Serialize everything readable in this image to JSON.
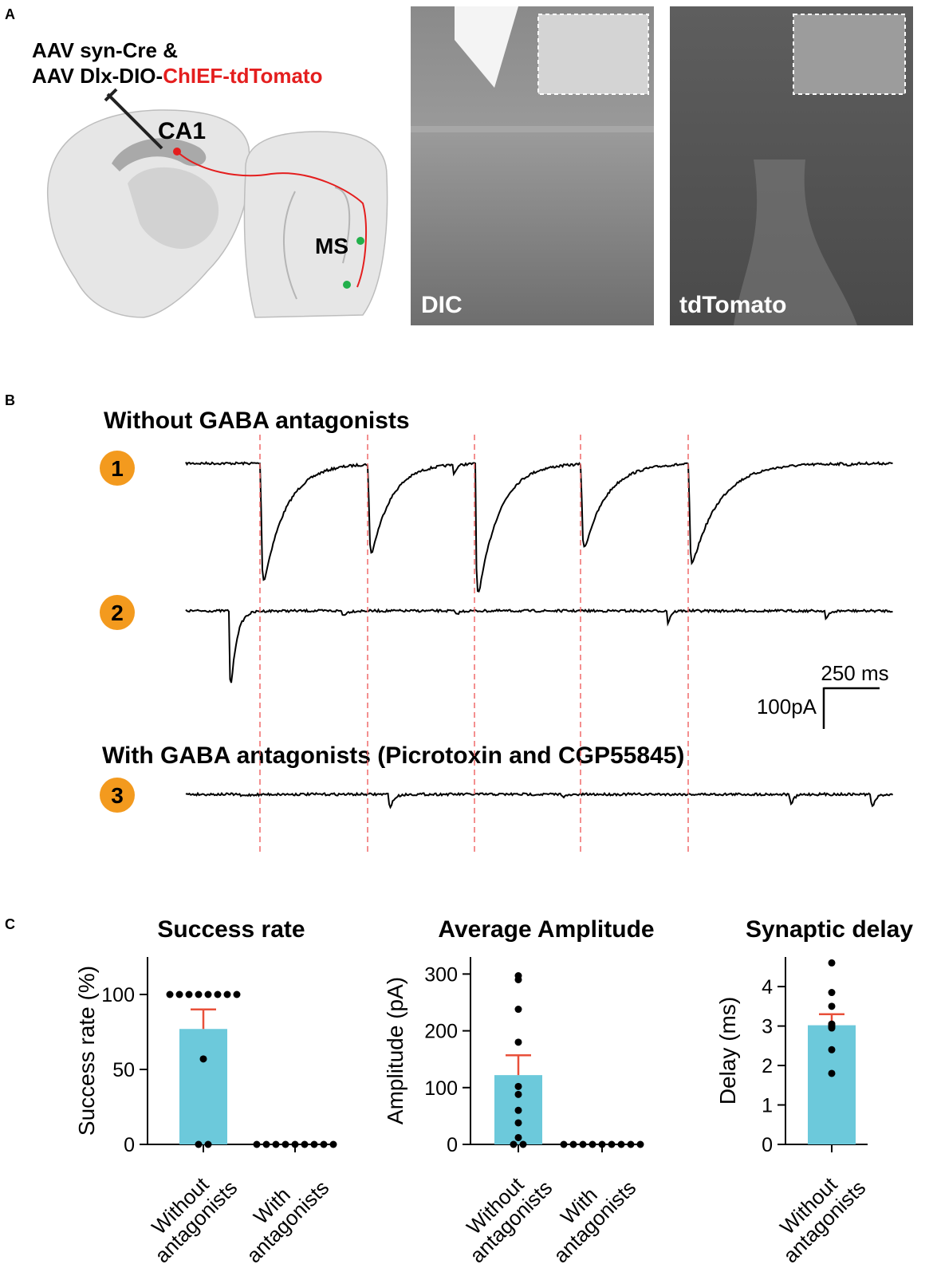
{
  "panel_a": {
    "label": "A",
    "injection_line1": "AAV syn-Cre &",
    "injection_line2_prefix": "AAV Dlx-DIO-",
    "injection_line2_highlight": "ChIEF-tdTomato",
    "region_ca1": "CA1",
    "region_ms": "MS",
    "image_dic": "DIC",
    "image_tdtomato": "tdTomato"
  },
  "panel_b": {
    "label": "B",
    "condition_1": "Without GABA antagonists",
    "trace_labels": [
      "1",
      "2",
      "3"
    ],
    "condition_2": "With GABA antagonists (Picrotoxin and CGP55845)",
    "scale_time": "250 ms",
    "scale_current": "100pA"
  },
  "panel_c_label": "C",
  "chart_data": [
    {
      "type": "bar",
      "title": "Success rate",
      "y_label": "Success rate (%)",
      "categories": [
        "Without antagonists",
        "With antagonists"
      ],
      "values": [
        77,
        0
      ],
      "errors": [
        13,
        0
      ],
      "points": [
        [
          100,
          100,
          100,
          100,
          100,
          100,
          100,
          100,
          57,
          0,
          0
        ],
        [
          0,
          0,
          0,
          0,
          0,
          0,
          0,
          0,
          0
        ]
      ],
      "ylim": [
        0,
        125
      ],
      "yticks": [
        0,
        50,
        100
      ],
      "color": "#6cc9db",
      "error_color": "#e8503a"
    },
    {
      "type": "bar",
      "title": "Average Amplitude",
      "y_label": "Amplitude (pA)",
      "categories": [
        "Without antagonists",
        "With antagonists"
      ],
      "values": [
        122,
        0
      ],
      "errors": [
        35,
        0
      ],
      "points": [
        [
          297,
          290,
          238,
          180,
          102,
          88,
          60,
          38,
          12,
          0,
          0
        ],
        [
          0,
          0,
          0,
          0,
          0,
          0,
          0,
          0,
          0
        ]
      ],
      "ylim": [
        0,
        330
      ],
      "yticks": [
        0,
        100,
        200,
        300
      ],
      "color": "#6cc9db",
      "error_color": "#e8503a"
    },
    {
      "type": "bar",
      "title": "Synaptic delay",
      "y_label": "Delay (ms)",
      "categories": [
        "Without antagonists"
      ],
      "values": [
        3.02
      ],
      "errors": [
        0.28
      ],
      "points": [
        [
          4.6,
          3.85,
          3.5,
          3.05,
          3.0,
          2.95,
          2.4,
          1.8
        ]
      ],
      "ylim": [
        0,
        4.75
      ],
      "yticks": [
        0,
        1,
        2,
        3,
        4
      ],
      "color": "#6cc9db",
      "error_color": "#e8503a"
    }
  ]
}
